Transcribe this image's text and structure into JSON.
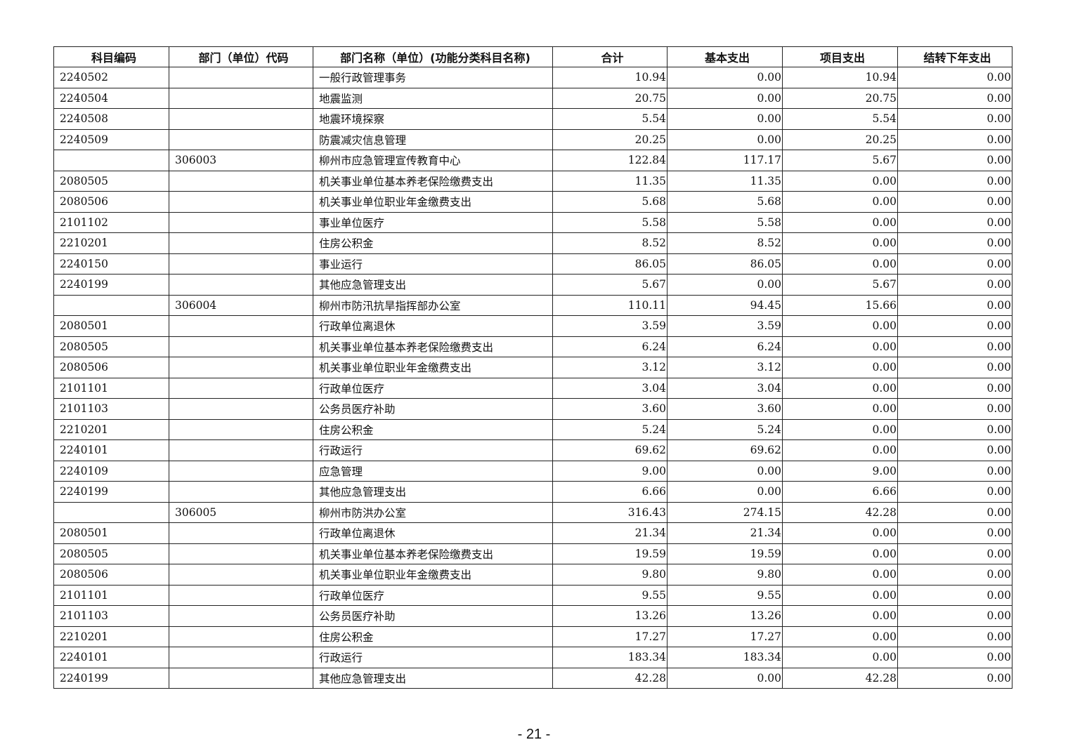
{
  "table": {
    "headers": [
      "科目编码",
      "部门（单位）代码",
      "部门名称（单位）(功能分类科目名称)",
      "合计",
      "基本支出",
      "项目支出",
      "结转下年支出"
    ],
    "rows": [
      [
        "2240502",
        "",
        "一般行政管理事务",
        "10.94",
        "0.00",
        "10.94",
        "0.00"
      ],
      [
        "2240504",
        "",
        "地震监测",
        "20.75",
        "0.00",
        "20.75",
        "0.00"
      ],
      [
        "2240508",
        "",
        "地震环境探察",
        "5.54",
        "0.00",
        "5.54",
        "0.00"
      ],
      [
        "2240509",
        "",
        "防震减灾信息管理",
        "20.25",
        "0.00",
        "20.25",
        "0.00"
      ],
      [
        "",
        "306003",
        "柳州市应急管理宣传教育中心",
        "122.84",
        "117.17",
        "5.67",
        "0.00"
      ],
      [
        "2080505",
        "",
        "机关事业单位基本养老保险缴费支出",
        "11.35",
        "11.35",
        "0.00",
        "0.00"
      ],
      [
        "2080506",
        "",
        "机关事业单位职业年金缴费支出",
        "5.68",
        "5.68",
        "0.00",
        "0.00"
      ],
      [
        "2101102",
        "",
        "事业单位医疗",
        "5.58",
        "5.58",
        "0.00",
        "0.00"
      ],
      [
        "2210201",
        "",
        "住房公积金",
        "8.52",
        "8.52",
        "0.00",
        "0.00"
      ],
      [
        "2240150",
        "",
        "事业运行",
        "86.05",
        "86.05",
        "0.00",
        "0.00"
      ],
      [
        "2240199",
        "",
        "其他应急管理支出",
        "5.67",
        "0.00",
        "5.67",
        "0.00"
      ],
      [
        "",
        "306004",
        "柳州市防汛抗旱指挥部办公室",
        "110.11",
        "94.45",
        "15.66",
        "0.00"
      ],
      [
        "2080501",
        "",
        "行政单位离退休",
        "3.59",
        "3.59",
        "0.00",
        "0.00"
      ],
      [
        "2080505",
        "",
        "机关事业单位基本养老保险缴费支出",
        "6.24",
        "6.24",
        "0.00",
        "0.00"
      ],
      [
        "2080506",
        "",
        "机关事业单位职业年金缴费支出",
        "3.12",
        "3.12",
        "0.00",
        "0.00"
      ],
      [
        "2101101",
        "",
        "行政单位医疗",
        "3.04",
        "3.04",
        "0.00",
        "0.00"
      ],
      [
        "2101103",
        "",
        "公务员医疗补助",
        "3.60",
        "3.60",
        "0.00",
        "0.00"
      ],
      [
        "2210201",
        "",
        "住房公积金",
        "5.24",
        "5.24",
        "0.00",
        "0.00"
      ],
      [
        "2240101",
        "",
        "行政运行",
        "69.62",
        "69.62",
        "0.00",
        "0.00"
      ],
      [
        "2240109",
        "",
        "应急管理",
        "9.00",
        "0.00",
        "9.00",
        "0.00"
      ],
      [
        "2240199",
        "",
        "其他应急管理支出",
        "6.66",
        "0.00",
        "6.66",
        "0.00"
      ],
      [
        "",
        "306005",
        "柳州市防洪办公室",
        "316.43",
        "274.15",
        "42.28",
        "0.00"
      ],
      [
        "2080501",
        "",
        "行政单位离退休",
        "21.34",
        "21.34",
        "0.00",
        "0.00"
      ],
      [
        "2080505",
        "",
        "机关事业单位基本养老保险缴费支出",
        "19.59",
        "19.59",
        "0.00",
        "0.00"
      ],
      [
        "2080506",
        "",
        "机关事业单位职业年金缴费支出",
        "9.80",
        "9.80",
        "0.00",
        "0.00"
      ],
      [
        "2101101",
        "",
        "行政单位医疗",
        "9.55",
        "9.55",
        "0.00",
        "0.00"
      ],
      [
        "2101103",
        "",
        "公务员医疗补助",
        "13.26",
        "13.26",
        "0.00",
        "0.00"
      ],
      [
        "2210201",
        "",
        "住房公积金",
        "17.27",
        "17.27",
        "0.00",
        "0.00"
      ],
      [
        "2240101",
        "",
        "行政运行",
        "183.34",
        "183.34",
        "0.00",
        "0.00"
      ],
      [
        "2240199",
        "",
        "其他应急管理支出",
        "42.28",
        "0.00",
        "42.28",
        "0.00"
      ]
    ]
  },
  "footer": {
    "page_number": "- 21 -"
  }
}
